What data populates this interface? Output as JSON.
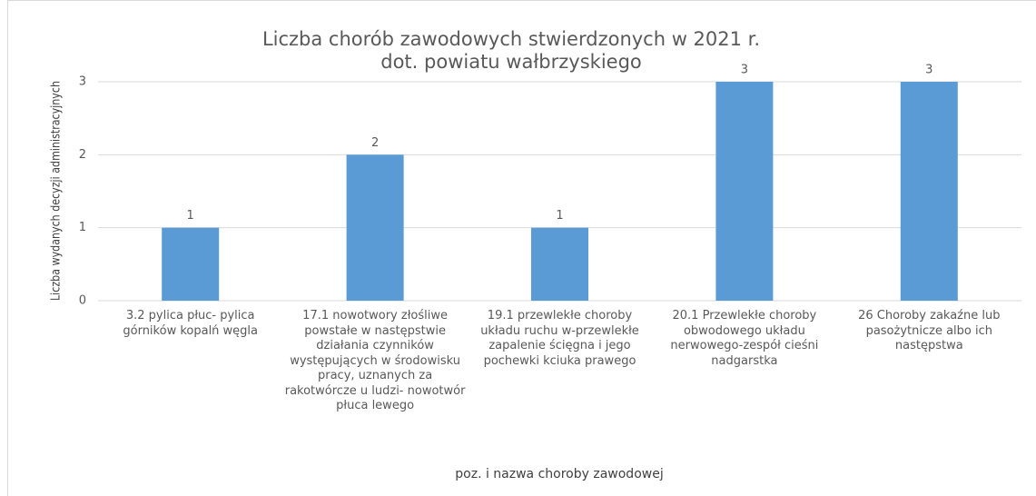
{
  "chart_data": {
    "type": "bar",
    "title": "Liczba chorób zawodowych stwierdzonych w 2021 r. dot. powiatu wałbrzyskiego",
    "xlabel": "poz. i nazwa choroby zawodowej",
    "ylabel": "Liczba wydanych decyzji administracyjnych",
    "categories": [
      "3.2 pylica płuc- pylica górników kopalń węgla",
      "17.1 nowotwory złośliwe powstałe w następstwie działania czynników występujących w środowisku pracy, uznanych za rakotwórcze u ludzi- nowotwór płuca lewego",
      "19.1 przewlekłe choroby układu ruchu w-przewlekłe zapalenie ścięgna i jego pochewki kciuka prawego",
      "20.1 Przewlekłe choroby obwodowego układu nerwowego-zespół cieśni nadgarstka",
      "26 Choroby zakaźne lub pasożytnicze albo ich następstwa"
    ],
    "values": [
      1,
      2,
      1,
      3,
      3
    ],
    "color": "#5b9bd5",
    "ylim": [
      0,
      3
    ],
    "yticks": [
      0,
      1,
      2,
      3
    ],
    "grid": true
  }
}
